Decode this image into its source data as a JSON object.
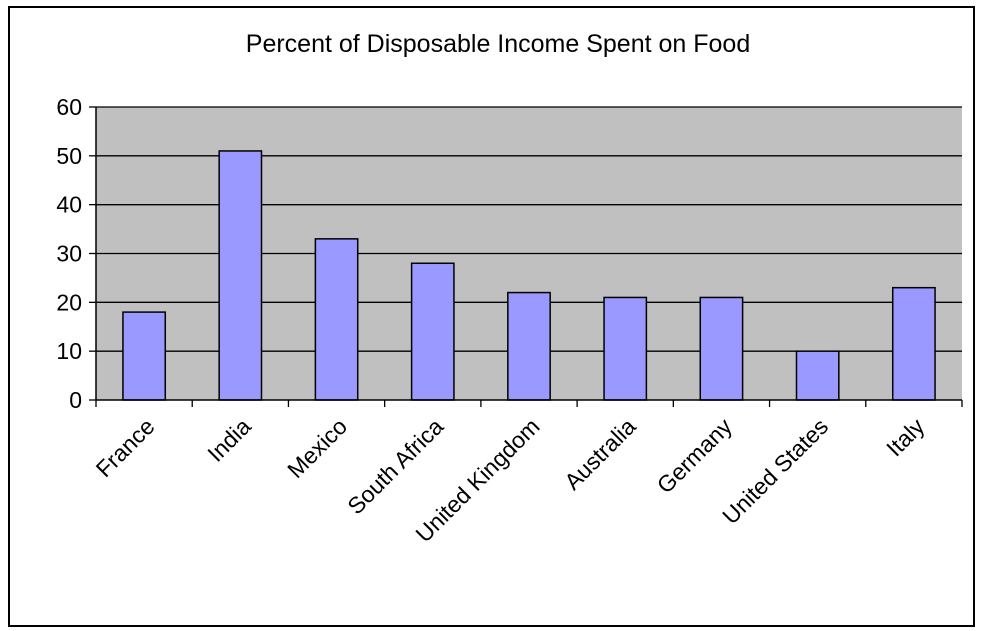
{
  "chart_data": {
    "type": "bar",
    "title": "Percent of Disposable Income Spent on Food",
    "xlabel": "",
    "ylabel": "",
    "categories": [
      "France",
      "India",
      "Mexico",
      "South Africa",
      "United Kingdom",
      "Australia",
      "Germany",
      "United States",
      "Italy"
    ],
    "values": [
      18,
      51,
      33,
      28,
      22,
      21,
      21,
      10,
      23
    ],
    "ylim": [
      0,
      60
    ],
    "yticks": [
      "0",
      "10",
      "20",
      "30",
      "40",
      "50",
      "60"
    ],
    "grid": true,
    "legend": "none",
    "colors": {
      "plot_background": "#c0c0c0",
      "bar_fill": "#9999ff",
      "bar_stroke": "#000000",
      "gridline": "#000000"
    }
  }
}
